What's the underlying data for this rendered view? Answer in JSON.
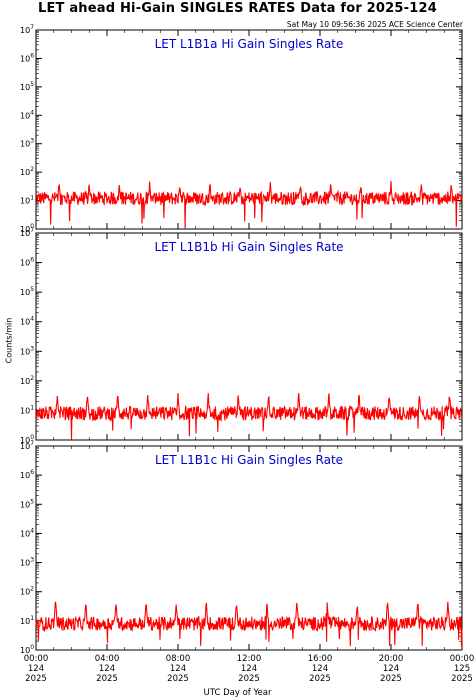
{
  "header": {
    "title": "LET ahead Hi-Gain SINGLES RATES Data for 2025-124",
    "timestamp": "Sat May 10 09:56:36 2025 ACE Science Center"
  },
  "chart_data": {
    "type": "line",
    "ylabel": "Counts/min",
    "xlabel": "UTC Day of Year",
    "yscale": "log",
    "ylim": [
      1,
      10000000
    ],
    "yticks": [
      {
        "base": "10",
        "exp": "0"
      },
      {
        "base": "10",
        "exp": "1"
      },
      {
        "base": "10",
        "exp": "2"
      },
      {
        "base": "10",
        "exp": "3"
      },
      {
        "base": "10",
        "exp": "4"
      },
      {
        "base": "10",
        "exp": "5"
      },
      {
        "base": "10",
        "exp": "6"
      },
      {
        "base": "10",
        "exp": "7"
      }
    ],
    "xlim_hours": [
      0,
      24
    ],
    "xticks": [
      {
        "hour": 0,
        "time": "00:00",
        "doy": "124",
        "year": "2025"
      },
      {
        "hour": 4,
        "time": "04:00",
        "doy": "124",
        "year": "2025"
      },
      {
        "hour": 8,
        "time": "08:00",
        "doy": "124",
        "year": "2025"
      },
      {
        "hour": 12,
        "time": "12:00",
        "doy": "124",
        "year": "2025"
      },
      {
        "hour": 16,
        "time": "16:00",
        "doy": "124",
        "year": "2025"
      },
      {
        "hour": 20,
        "time": "20:00",
        "doy": "124",
        "year": "2025"
      },
      {
        "hour": 24,
        "time": "00:00",
        "doy": "125",
        "year": "2025"
      }
    ],
    "line_color": "#ff0000",
    "panels": [
      {
        "title": "LET L1B1a Hi Gain Singles Rate",
        "baseline": 12,
        "spike_peak": 45,
        "spike_hours": [
          1.3,
          3.0,
          4.7,
          6.4,
          8.1,
          9.8,
          11.5,
          13.2,
          14.9,
          16.6,
          18.3,
          20.0,
          21.7,
          23.4
        ]
      },
      {
        "title": "LET L1B1b Hi Gain Singles Rate",
        "baseline": 8,
        "spike_peak": 40,
        "spike_hours": [
          1.2,
          2.9,
          4.6,
          6.3,
          8.0,
          9.7,
          11.4,
          13.1,
          14.8,
          16.5,
          18.2,
          19.9,
          21.6,
          23.3
        ]
      },
      {
        "title": "LET L1B1c Hi Gain Singles Rate",
        "baseline": 8,
        "spike_peak": 50,
        "spike_hours": [
          1.1,
          2.8,
          4.5,
          6.2,
          7.9,
          9.6,
          11.3,
          13.0,
          14.7,
          16.4,
          18.1,
          19.8,
          21.5,
          23.2
        ]
      }
    ]
  }
}
